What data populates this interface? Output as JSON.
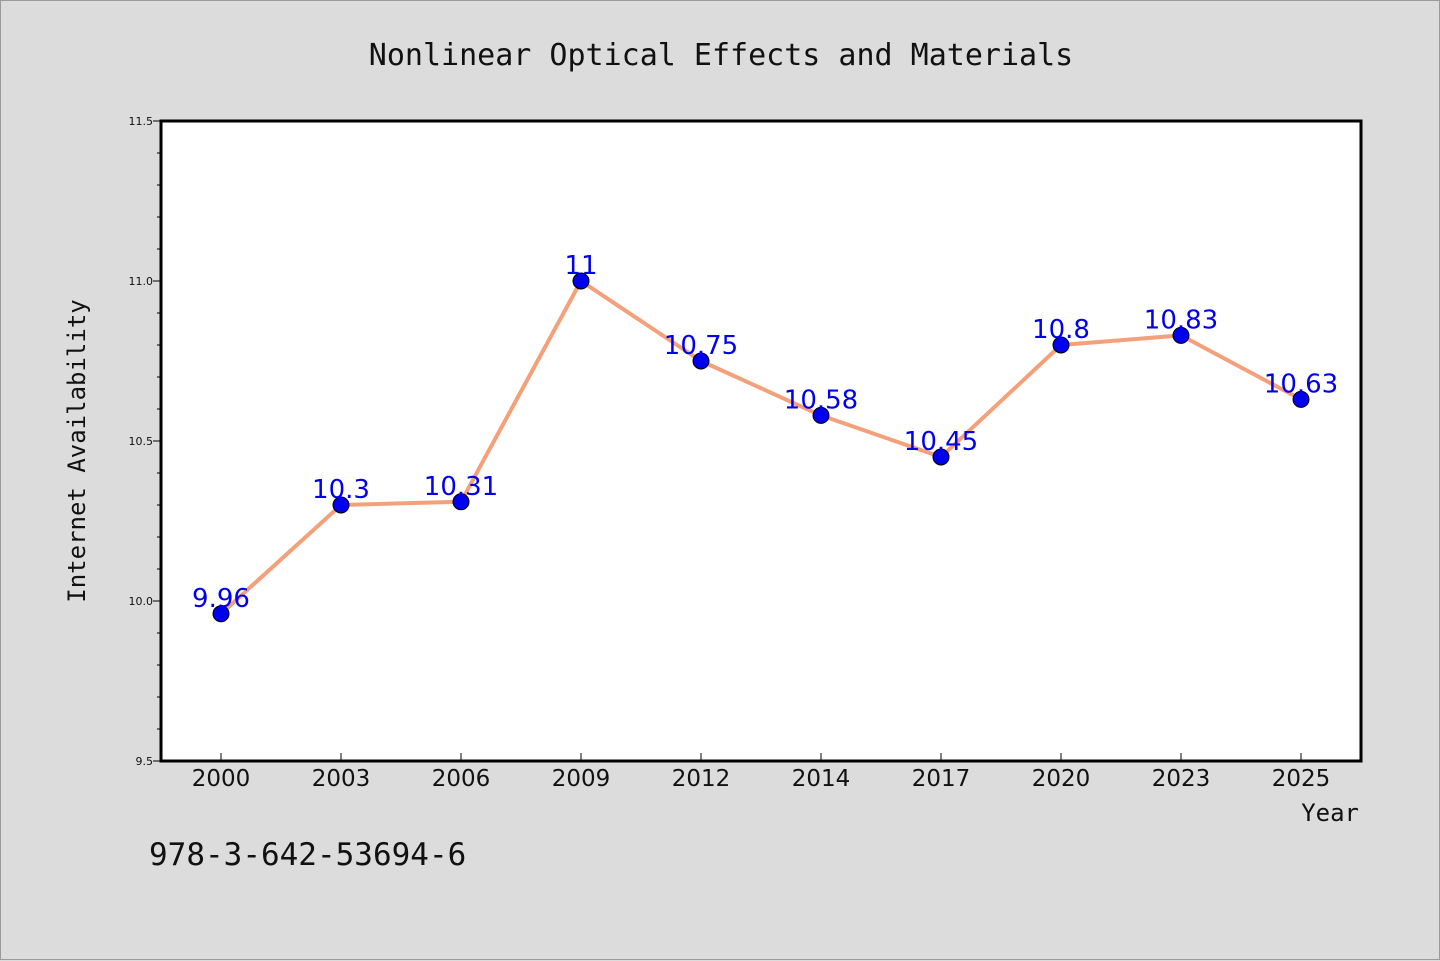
{
  "colors": {
    "background": "#dcdcdc",
    "plot_background": "#ffffff",
    "line": "#f4a07a",
    "marker": "#0000ee",
    "data_label": "#0000ee"
  },
  "footer_text": "978-3-642-53694-6",
  "chart_data": {
    "type": "line",
    "title": "Nonlinear Optical Effects and Materials",
    "xlabel": "Year",
    "ylabel": "Internet Availability",
    "categories": [
      "2000",
      "2003",
      "2006",
      "2009",
      "2012",
      "2014",
      "2017",
      "2020",
      "2023",
      "2025"
    ],
    "series": [
      {
        "values": [
          9.96,
          10.3,
          10.31,
          11.0,
          10.75,
          10.58,
          10.45,
          10.8,
          10.83,
          10.63
        ],
        "data_labels": [
          "9.96",
          "10.3",
          "10.31",
          "11",
          "10.75",
          "10.58",
          "10.45",
          "10.8",
          "10.83",
          "10.63"
        ]
      }
    ],
    "ylim": [
      9.5,
      11.5
    ],
    "yticks": [
      "9.5",
      "10.0",
      "10.5",
      "11.0",
      "11.5"
    ],
    "grid": false,
    "legend": "none"
  }
}
